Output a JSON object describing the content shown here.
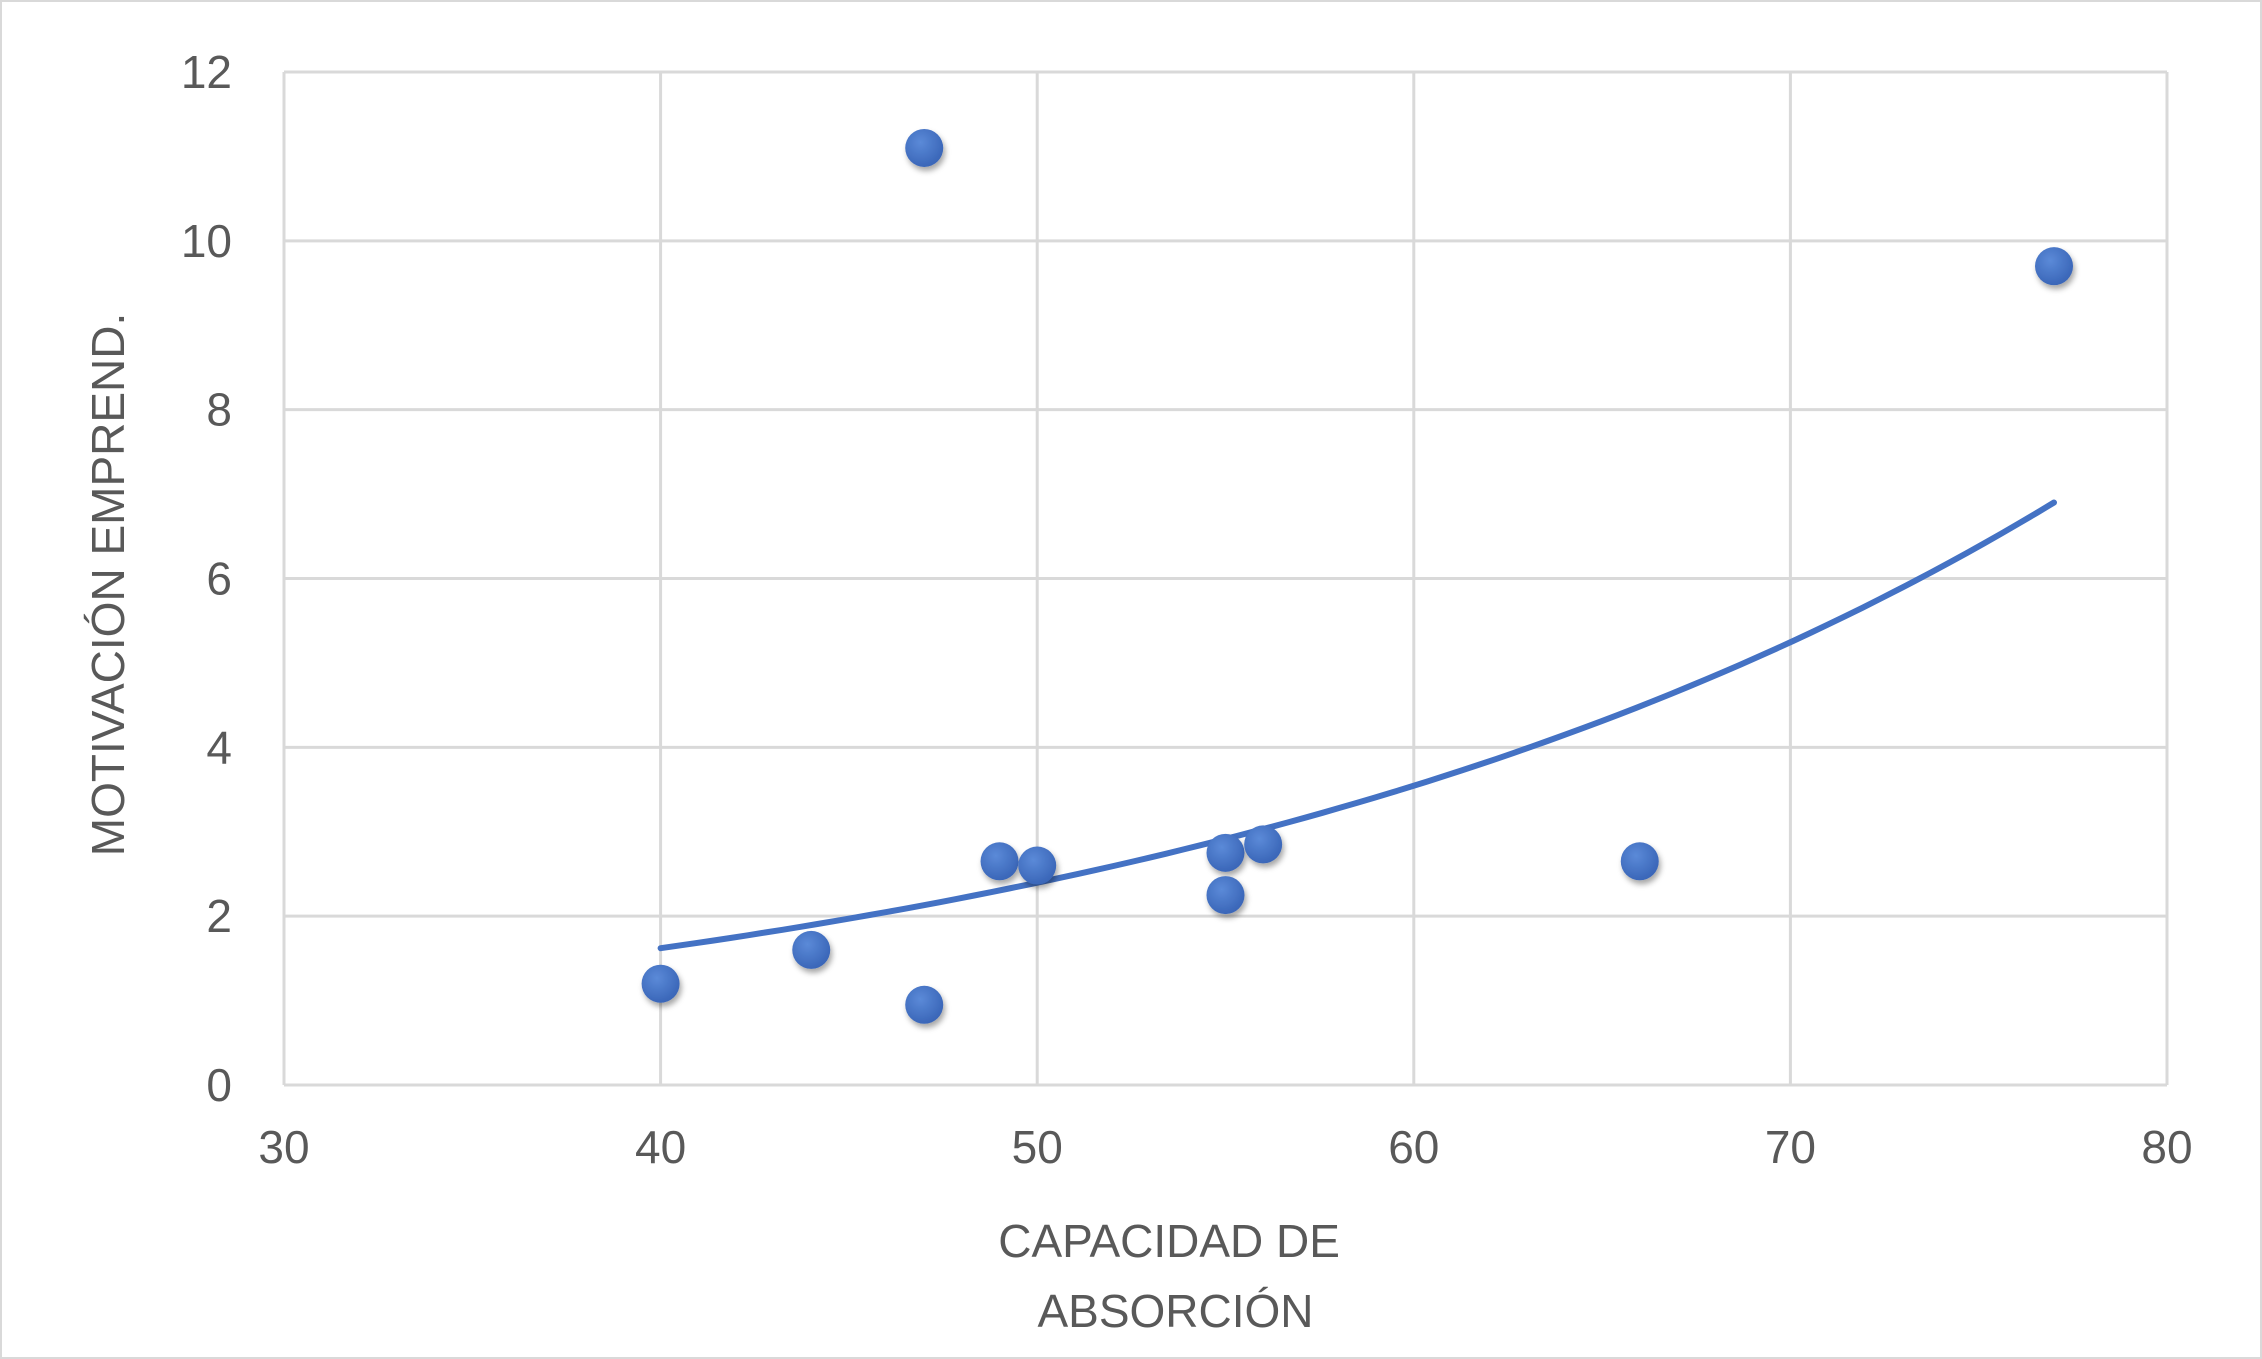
{
  "chart_data": {
    "type": "scatter",
    "title": "",
    "xlabel_lines": [
      "CAPACIDAD DE",
      "ABSORCIÓN"
    ],
    "ylabel": "MOTIVACIÓN EMPREND.",
    "xlim": [
      30,
      80
    ],
    "ylim": [
      0,
      12
    ],
    "x_ticks": [
      "30",
      "40",
      "50",
      "60",
      "70",
      "80"
    ],
    "y_ticks": [
      "0",
      "2",
      "4",
      "6",
      "8",
      "10",
      "12"
    ],
    "grid": true,
    "legend": "none",
    "series": [
      {
        "points": [
          {
            "x": 40,
            "y": 1.2
          },
          {
            "x": 44,
            "y": 1.6
          },
          {
            "x": 47,
            "y": 11.1
          },
          {
            "x": 47,
            "y": 0.95
          },
          {
            "x": 49,
            "y": 2.65
          },
          {
            "x": 50,
            "y": 2.6
          },
          {
            "x": 55,
            "y": 2.75
          },
          {
            "x": 55,
            "y": 2.25
          },
          {
            "x": 56,
            "y": 2.85
          },
          {
            "x": 66,
            "y": 2.65
          },
          {
            "x": 77,
            "y": 9.7
          }
        ],
        "color": "#4472c4"
      }
    ],
    "trendline": {
      "type": "exponential",
      "x_range": [
        40,
        77
      ],
      "start_y": 1.62,
      "end_y": 6.9,
      "color": "#4472c4"
    }
  }
}
